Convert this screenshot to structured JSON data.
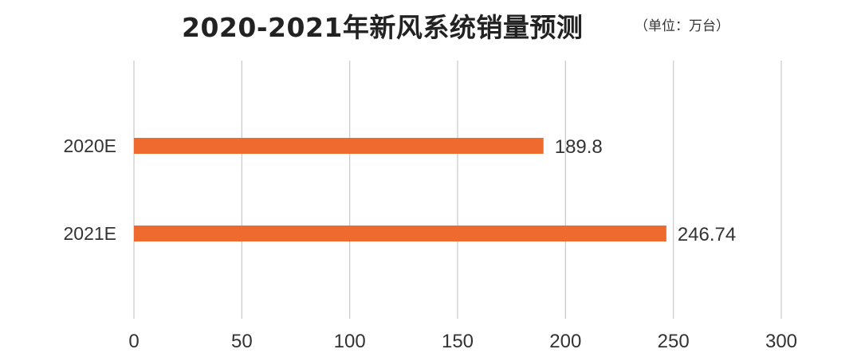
{
  "title": "2020-2021年新风系统销量预测",
  "unit_note": "（单位：万台）",
  "colors": {
    "bar": "#EE6A2E",
    "grid": "#C8C8C8",
    "text": "#333333"
  },
  "chart_data": {
    "type": "bar",
    "orientation": "horizontal",
    "categories": [
      "2020E",
      "2021E"
    ],
    "values": [
      189.8,
      246.74
    ],
    "value_labels": [
      "189.8",
      "246.74"
    ],
    "xlim": [
      0,
      300
    ],
    "xticks": [
      0,
      50,
      100,
      150,
      200,
      250,
      300
    ],
    "grid": true,
    "legend": "none"
  }
}
